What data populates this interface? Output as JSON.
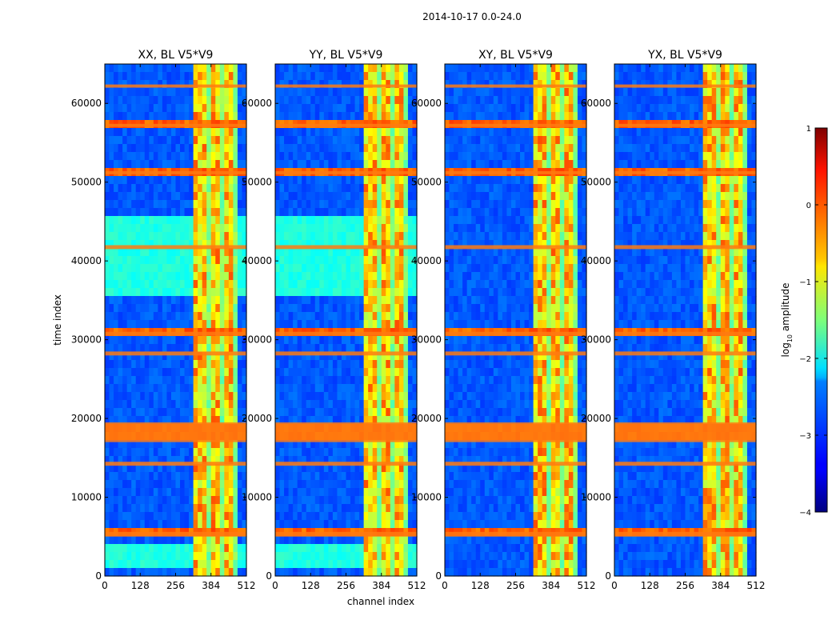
{
  "figure": {
    "suptitle": "2014-10-17 0.0-24.0"
  },
  "chart_data": {
    "type": "heatmap",
    "ylabel": "time index",
    "xlabel": "channel index",
    "xlim": [
      0,
      512
    ],
    "ylim": [
      0,
      65000
    ],
    "x_ticks": [
      0,
      128,
      256,
      384,
      512
    ],
    "y_ticks": [
      0,
      10000,
      20000,
      30000,
      40000,
      50000,
      60000
    ],
    "y_tick_labels": [
      "0",
      "10000",
      "20000",
      "30000",
      "40000",
      "50000",
      "60000"
    ],
    "panels": [
      {
        "title": "XX, BL V5*V9",
        "polarization": "XX"
      },
      {
        "title": "YY, BL V5*V9",
        "polarization": "YY"
      },
      {
        "title": "XY, BL V5*V9",
        "polarization": "XY"
      },
      {
        "title": "YX, BL V5*V9",
        "polarization": "YX"
      }
    ],
    "bright_channel_range": [
      325,
      485
    ],
    "hot_time_bands": [
      [
        17000,
        19500
      ],
      [
        5000,
        5600
      ],
      [
        14000,
        14500
      ],
      [
        28000,
        28500
      ],
      [
        30500,
        31000
      ],
      [
        41500,
        42000
      ],
      [
        51000,
        51400
      ],
      [
        57000,
        57400
      ],
      [
        62000,
        62400
      ]
    ],
    "colorbar": {
      "label": "log10 amplitude",
      "label_main": "log",
      "label_sub": "10",
      "label_rest": " amplitude",
      "range": [
        -4,
        1
      ],
      "ticks": [
        1,
        0,
        -1,
        -2,
        -3,
        -4
      ],
      "tick_labels": [
        "1",
        "0",
        "−1",
        "−2",
        "−3",
        "−4"
      ],
      "colormap": "jet"
    }
  }
}
